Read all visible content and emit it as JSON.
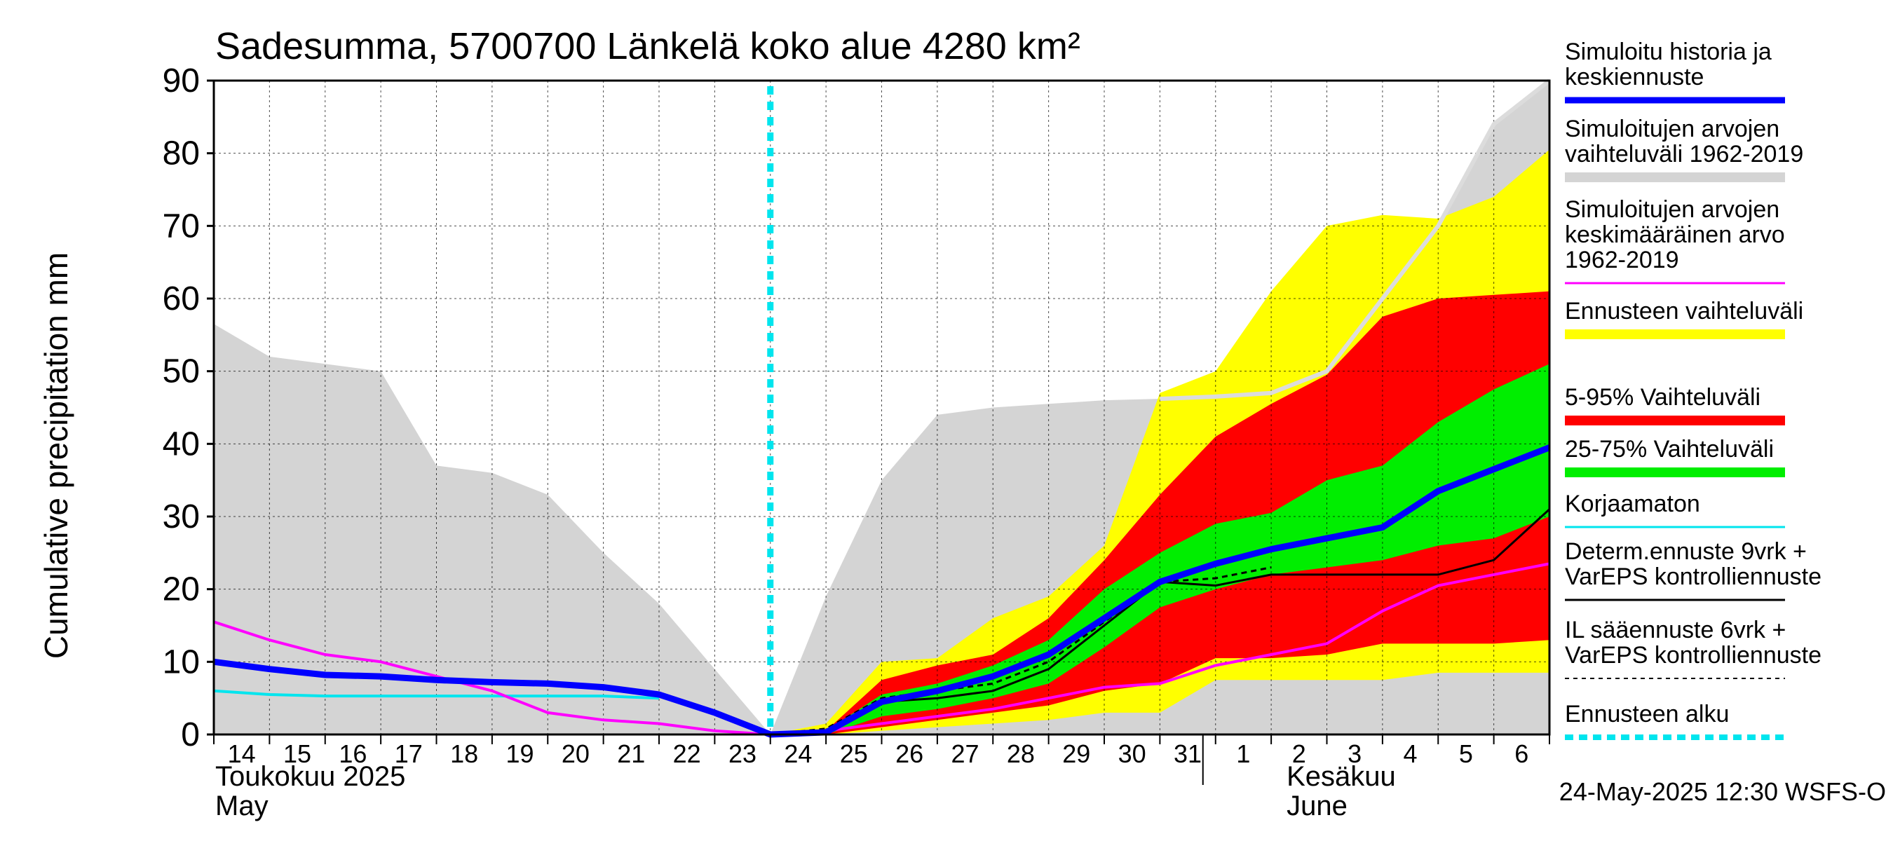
{
  "chart_data": {
    "type": "area",
    "title": "Sadesumma, 5700700 Länkelä koko alue 4280 km²",
    "ylabel": "Cumulative precipitation   mm",
    "ylim": [
      0,
      90
    ],
    "yticks": [
      0,
      10,
      20,
      30,
      40,
      50,
      60,
      70,
      80,
      90
    ],
    "x_day_labels": [
      "14",
      "15",
      "16",
      "17",
      "18",
      "19",
      "20",
      "21",
      "22",
      "23",
      "24",
      "25",
      "26",
      "27",
      "28",
      "29",
      "30",
      "31",
      "1",
      "2",
      "3",
      "4",
      "5",
      "6"
    ],
    "month_labels": [
      {
        "fi": "Toukokuu  2025",
        "en": "May"
      },
      {
        "fi": "Kesäkuu",
        "en": "June"
      }
    ],
    "forecast_start_day": 10,
    "footer": "24-May-2025 12:30 WSFS-O",
    "colors": {
      "hist_range": "#d4d4d4",
      "ens_range": "#ffff00",
      "p5_95": "#ff0000",
      "p25_75": "#00ee00",
      "sim_mean": "#0000ff",
      "hist_mean": "#ff00ff",
      "uncorrected": "#00e5ee",
      "determ": "#000000",
      "il": "#000000",
      "forecast_start": "#00e5ee"
    },
    "legend": [
      {
        "key": "sim_mean",
        "text": [
          "Simuloitu historia ja",
          "keskiennuste"
        ],
        "style": "thick"
      },
      {
        "key": "hist_range",
        "text": [
          "Simuloitujen arvojen",
          "vaihteluväli 1962-2019"
        ],
        "style": "band"
      },
      {
        "key": "hist_mean",
        "text": [
          "Simuloitujen arvojen",
          "keskimääräinen arvo",
          "   1962-2019"
        ],
        "style": "thin"
      },
      {
        "key": "ens_range",
        "text": [
          "Ennusteen vaihteluväli"
        ],
        "style": "band"
      },
      {
        "key": "p5_95",
        "text": [
          "5-95% Vaihteluväli"
        ],
        "style": "band"
      },
      {
        "key": "p25_75",
        "text": [
          "25-75% Vaihteluväli"
        ],
        "style": "band"
      },
      {
        "key": "uncorrected",
        "text": [
          "Korjaamaton"
        ],
        "style": "thin"
      },
      {
        "key": "determ",
        "text": [
          "Determ.ennuste 9vrk +",
          "VarEPS kontrolliennuste"
        ],
        "style": "thin"
      },
      {
        "key": "il",
        "text": [
          "IL sääennuste 6vrk  +",
          "  VarEPS kontrolliennuste"
        ],
        "style": "dashed"
      },
      {
        "key": "forecast_start",
        "text": [
          "Ennusteen alku"
        ],
        "style": "dotted"
      }
    ],
    "series": {
      "hist_range_upper": {
        "x": [
          0,
          1,
          2,
          3,
          4,
          5,
          6,
          7,
          8,
          9,
          10,
          11,
          12,
          13,
          14,
          15,
          16,
          17,
          18,
          19,
          20,
          21,
          22,
          23,
          24
        ],
        "y": [
          56.5,
          52,
          51,
          50,
          37,
          36,
          33,
          25,
          18,
          9,
          0,
          19,
          35,
          44,
          45,
          45.5,
          46,
          46.2,
          46.5,
          47,
          50,
          60,
          70,
          84,
          90
        ]
      },
      "hist_range_lower": {
        "x": [
          0,
          10,
          21,
          22,
          23,
          24
        ],
        "y": [
          0,
          0,
          0,
          0,
          0,
          0
        ]
      },
      "ens_max": {
        "x": [
          10,
          11,
          12,
          13,
          14,
          15,
          16,
          17,
          18,
          19,
          20,
          21,
          22,
          23,
          24
        ],
        "y": [
          0,
          1.5,
          10,
          10.5,
          16,
          19,
          26,
          47,
          50,
          61,
          70,
          71.5,
          71,
          74,
          80.5
        ]
      },
      "ens_min": {
        "x": [
          10,
          11,
          12,
          13,
          14,
          15,
          16,
          17,
          18,
          19,
          20,
          21,
          22,
          23,
          24
        ],
        "y": [
          0,
          0,
          0.5,
          1,
          1.5,
          2,
          3,
          3,
          7.5,
          7.5,
          7.5,
          7.5,
          8.5,
          8.5,
          8.5
        ]
      },
      "p95": {
        "x": [
          10,
          11,
          12,
          13,
          14,
          15,
          16,
          17,
          18,
          19,
          20,
          21,
          22,
          23,
          24
        ],
        "y": [
          0,
          0.5,
          7.5,
          9.5,
          11,
          16,
          24,
          33,
          41,
          45.5,
          49.5,
          57.5,
          60,
          60.5,
          61
        ]
      },
      "p5": {
        "x": [
          10,
          11,
          12,
          13,
          14,
          15,
          16,
          17,
          18,
          19,
          20,
          21,
          22,
          23,
          24
        ],
        "y": [
          0,
          0,
          1,
          2,
          3,
          4,
          6,
          7,
          10.5,
          10.5,
          11,
          12.5,
          12.5,
          12.5,
          13
        ]
      },
      "p75": {
        "x": [
          10,
          11,
          12,
          13,
          14,
          15,
          16,
          17,
          18,
          19,
          20,
          21,
          22,
          23,
          24
        ],
        "y": [
          0,
          0.5,
          5.5,
          7,
          9.5,
          13,
          20,
          25,
          29,
          30.5,
          35,
          37,
          43,
          47.5,
          51
        ]
      },
      "p25": {
        "x": [
          10,
          11,
          12,
          13,
          14,
          15,
          16,
          17,
          18,
          19,
          20,
          21,
          22,
          23,
          24
        ],
        "y": [
          0,
          0,
          2.5,
          3.5,
          5,
          7,
          12,
          17.5,
          20,
          22,
          23,
          24,
          26,
          27,
          30
        ]
      },
      "sim_mean": {
        "x": [
          0,
          1,
          2,
          3,
          4,
          5,
          6,
          7,
          8,
          9,
          10,
          11,
          12,
          13,
          14,
          15,
          16,
          17,
          18,
          19,
          20,
          21,
          22,
          23,
          24
        ],
        "y": [
          10,
          9,
          8.2,
          8,
          7.5,
          7.2,
          7,
          6.5,
          5.5,
          3,
          0,
          0.3,
          4.5,
          6,
          8,
          11,
          16,
          21,
          23.5,
          25.5,
          27,
          28.5,
          33.5,
          36.5,
          39.5
        ]
      },
      "hist_mean": {
        "x": [
          0,
          1,
          2,
          3,
          4,
          5,
          6,
          7,
          8,
          9,
          10,
          11,
          12,
          13,
          14,
          15,
          16,
          17,
          18,
          19,
          20,
          21,
          22,
          23,
          24
        ],
        "y": [
          15.5,
          13,
          11,
          10,
          8,
          6,
          3,
          2,
          1.5,
          0.5,
          0,
          0.5,
          1.5,
          2.5,
          3.5,
          5,
          6.5,
          7,
          9.5,
          11,
          12.5,
          17,
          20.5,
          22,
          23.5
        ]
      },
      "uncorrected": {
        "x": [
          0,
          1,
          2,
          3,
          4,
          5,
          6,
          7,
          8
        ],
        "y": [
          6,
          5.5,
          5.3,
          5.3,
          5.3,
          5.3,
          5.3,
          5.3,
          5
        ]
      },
      "determ": {
        "x": [
          10,
          11,
          12,
          13,
          14,
          15,
          16,
          17,
          18,
          19,
          20,
          21,
          22,
          23,
          24
        ],
        "y": [
          0,
          0.5,
          4.5,
          5,
          6,
          9,
          15,
          21,
          20.5,
          22,
          22,
          22,
          22,
          24,
          31
        ]
      },
      "il": {
        "x": [
          10,
          11,
          12,
          13,
          14,
          15,
          16,
          17,
          18,
          19
        ],
        "y": [
          0,
          0.8,
          5,
          6,
          7,
          10,
          15.5,
          21,
          21.5,
          23
        ]
      }
    }
  }
}
